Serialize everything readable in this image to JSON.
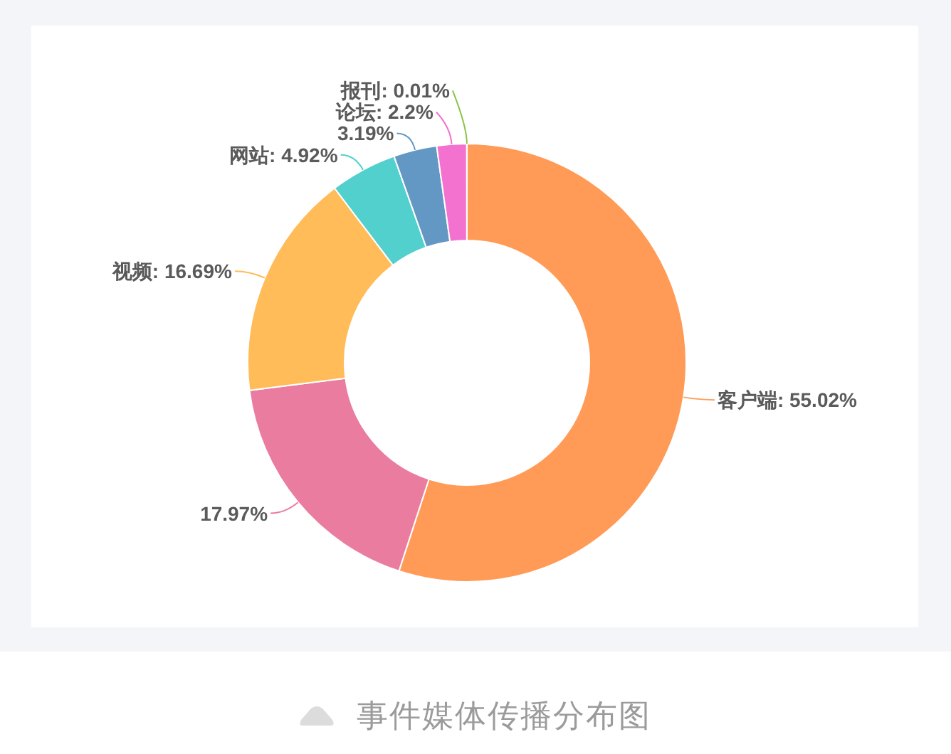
{
  "chart_data": {
    "type": "donut",
    "categories": [
      "客户端",
      null,
      "视频",
      "网站",
      null,
      "论坛",
      "报刊"
    ],
    "values": [
      55.02,
      17.97,
      16.69,
      4.92,
      3.19,
      2.2,
      0.01
    ],
    "colors": [
      "#ff9b56",
      "#ea7c9f",
      "#ffbc58",
      "#52d0cd",
      "#6498c4",
      "#f371cf",
      "#8bc34a"
    ],
    "value_labels": [
      "55.02%",
      "17.97%",
      "16.69%",
      "4.92%",
      "3.19%",
      "2.2%",
      "0.01%"
    ],
    "annotations": [
      "事件媒体传播分布图"
    ]
  }
}
